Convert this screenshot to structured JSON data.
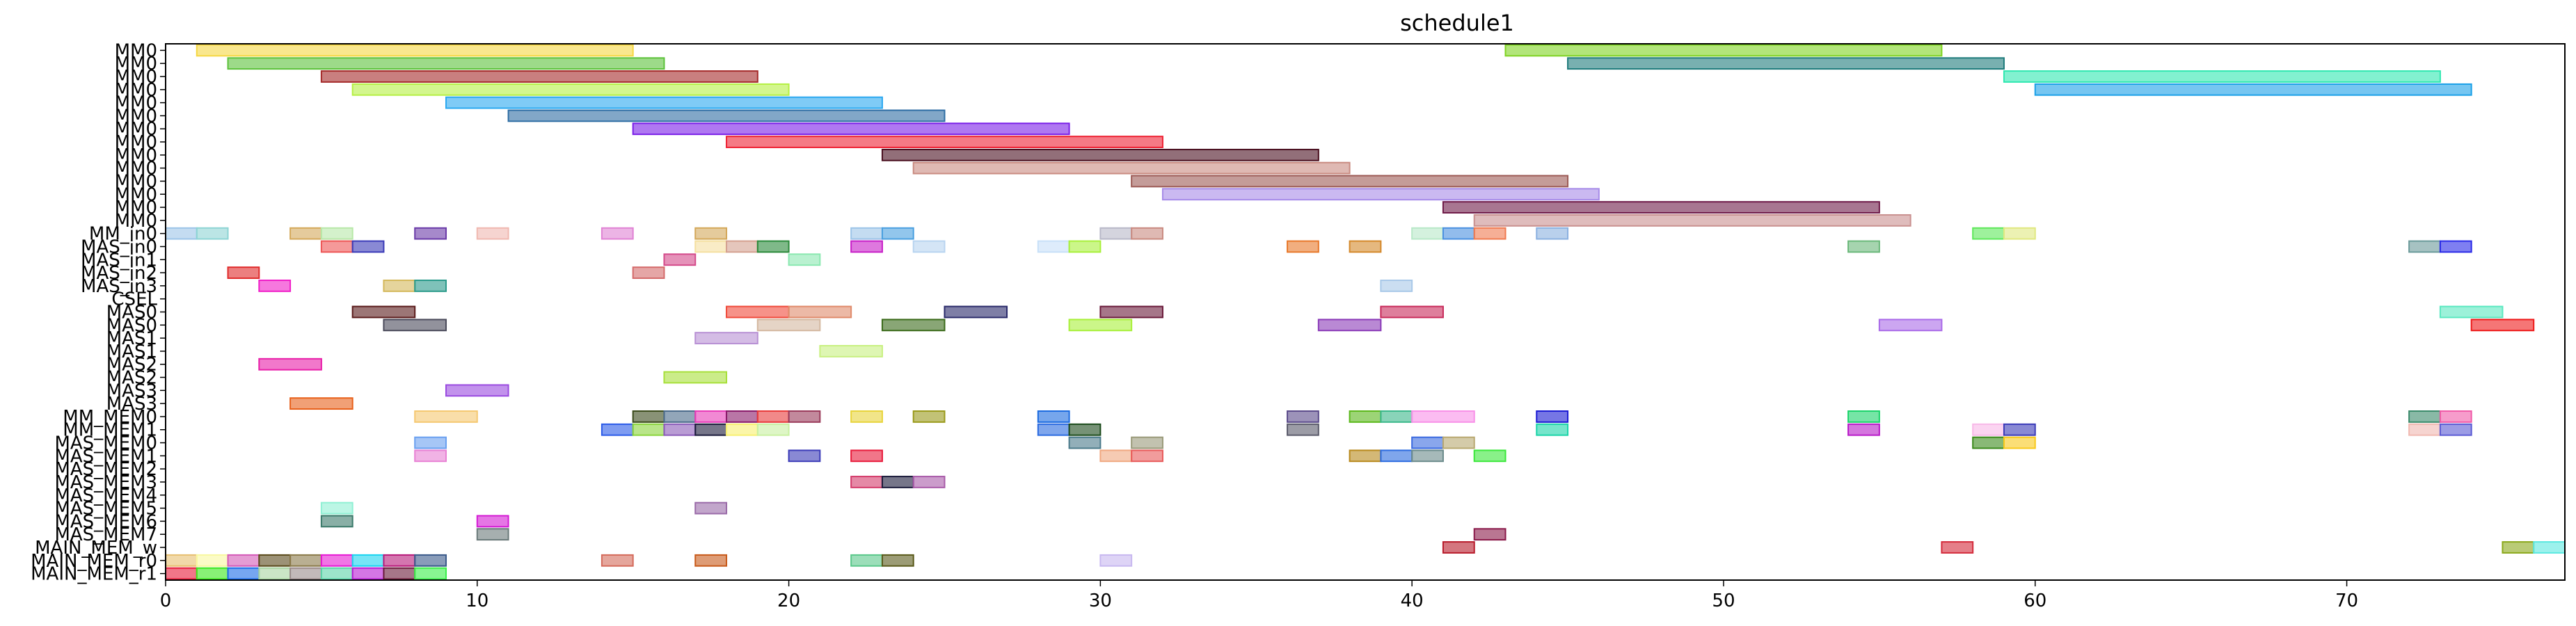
{
  "chart_data": {
    "type": "gantt",
    "title": "schedule1",
    "xlim": [
      0,
      77
    ],
    "x_ticks": [
      0,
      10,
      20,
      30,
      40,
      50,
      60,
      70
    ],
    "rows": [
      "MM0",
      "MM0",
      "MM0",
      "MM0",
      "MM0",
      "MM0",
      "MM0",
      "MM0",
      "MM0",
      "MM0",
      "MM0",
      "MM0",
      "MM0",
      "MM0",
      "MM_in0",
      "MAS_in0",
      "MAS_in1",
      "MAS_in2",
      "MAS_in3",
      "CSEL",
      "MAS0",
      "MAS0",
      "MAS1",
      "MAS1",
      "MAS2",
      "MAS2",
      "MAS3",
      "MAS3",
      "MM_MEM0",
      "MM_MEM1",
      "MAS_MEM0",
      "MAS_MEM1",
      "MAS_MEM2",
      "MAS_MEM3",
      "MAS_MEM4",
      "MAS_MEM5",
      "MAS_MEM6",
      "MAS_MEM7",
      "MAIN_MEM_w",
      "MAIN_MEM_r0",
      "MAIN_MEM_r1"
    ],
    "tasks": [
      {
        "row": 0,
        "start": 1,
        "end": 15,
        "color": "#f5d742"
      },
      {
        "row": 0,
        "start": 43,
        "end": 57,
        "color": "#7ed321"
      },
      {
        "row": 1,
        "start": 2,
        "end": 16,
        "color": "#5cc23a"
      },
      {
        "row": 1,
        "start": 45,
        "end": 59,
        "color": "#1e7b7b"
      },
      {
        "row": 2,
        "start": 5,
        "end": 19,
        "color": "#a52a2a"
      },
      {
        "row": 2,
        "start": 59,
        "end": 73,
        "color": "#2ee8b0"
      },
      {
        "row": 3,
        "start": 6,
        "end": 20,
        "color": "#b5f042"
      },
      {
        "row": 3,
        "start": 60,
        "end": 74,
        "color": "#1aa0e8"
      },
      {
        "row": 4,
        "start": 9,
        "end": 23,
        "color": "#2aa8f0"
      },
      {
        "row": 5,
        "start": 11,
        "end": 25,
        "color": "#2e6da4"
      },
      {
        "row": 6,
        "start": 15,
        "end": 29,
        "color": "#7a1ee8"
      },
      {
        "row": 7,
        "start": 18,
        "end": 32,
        "color": "#ee2233"
      },
      {
        "row": 8,
        "start": 23,
        "end": 37,
        "color": "#4a0f1f"
      },
      {
        "row": 9,
        "start": 24,
        "end": 38,
        "color": "#c98a80"
      },
      {
        "row": 10,
        "start": 31,
        "end": 45,
        "color": "#9c5a55"
      },
      {
        "row": 11,
        "start": 32,
        "end": 46,
        "color": "#a68be8"
      },
      {
        "row": 12,
        "start": 41,
        "end": 55,
        "color": "#6e1a48"
      },
      {
        "row": 13,
        "start": 42,
        "end": 56,
        "color": "#c9908f"
      },
      {
        "row": 14,
        "start": 0,
        "end": 1,
        "color": "#9cc4e8"
      },
      {
        "row": 14,
        "start": 1,
        "end": 2,
        "color": "#8dd4d4"
      },
      {
        "row": 14,
        "start": 4,
        "end": 5,
        "color": "#d4a85a"
      },
      {
        "row": 14,
        "start": 5,
        "end": 6,
        "color": "#b8e8a8"
      },
      {
        "row": 14,
        "start": 8,
        "end": 9,
        "color": "#6a3aa8"
      },
      {
        "row": 14,
        "start": 10,
        "end": 11,
        "color": "#f0b8b0"
      },
      {
        "row": 14,
        "start": 14,
        "end": 15,
        "color": "#e082d4"
      },
      {
        "row": 14,
        "start": 17,
        "end": 18,
        "color": "#d4a85a"
      },
      {
        "row": 14,
        "start": 22,
        "end": 23,
        "color": "#9cc4e8"
      },
      {
        "row": 14,
        "start": 23,
        "end": 24,
        "color": "#4aa0e0"
      },
      {
        "row": 14,
        "start": 30,
        "end": 31,
        "color": "#b8b8c8"
      },
      {
        "row": 14,
        "start": 31,
        "end": 32,
        "color": "#c98a80"
      },
      {
        "row": 14,
        "start": 40,
        "end": 41,
        "color": "#b8e8c8"
      },
      {
        "row": 14,
        "start": 41,
        "end": 42,
        "color": "#4a90e0"
      },
      {
        "row": 14,
        "start": 42,
        "end": 43,
        "color": "#f07a50"
      },
      {
        "row": 14,
        "start": 44,
        "end": 45,
        "color": "#8ab0e0"
      },
      {
        "row": 14,
        "start": 58,
        "end": 59,
        "color": "#5ee85a"
      },
      {
        "row": 14,
        "start": 59,
        "end": 60,
        "color": "#e0e880"
      },
      {
        "row": 15,
        "start": 5,
        "end": 6,
        "color": "#ee5555"
      },
      {
        "row": 15,
        "start": 6,
        "end": 7,
        "color": "#3a3ab8"
      },
      {
        "row": 15,
        "start": 17,
        "end": 18,
        "color": "#f5e0a0"
      },
      {
        "row": 15,
        "start": 18,
        "end": 19,
        "color": "#d4a090"
      },
      {
        "row": 15,
        "start": 19,
        "end": 20,
        "color": "#2a8a3a"
      },
      {
        "row": 15,
        "start": 22,
        "end": 23,
        "color": "#c81ec8"
      },
      {
        "row": 15,
        "start": 24,
        "end": 25,
        "color": "#b8d4f0"
      },
      {
        "row": 15,
        "start": 28,
        "end": 29,
        "color": "#c8e0f8"
      },
      {
        "row": 15,
        "start": 29,
        "end": 30,
        "color": "#a8f03a"
      },
      {
        "row": 15,
        "start": 36,
        "end": 37,
        "color": "#e8782a"
      },
      {
        "row": 15,
        "start": 38,
        "end": 39,
        "color": "#d4882a"
      },
      {
        "row": 15,
        "start": 54,
        "end": 55,
        "color": "#6ab87a"
      },
      {
        "row": 15,
        "start": 72,
        "end": 73,
        "color": "#6a9a9a"
      },
      {
        "row": 15,
        "start": 73,
        "end": 74,
        "color": "#2a2ae8"
      },
      {
        "row": 16,
        "start": 16,
        "end": 17,
        "color": "#d44a8a"
      },
      {
        "row": 16,
        "start": 20,
        "end": 21,
        "color": "#8ae8b0"
      },
      {
        "row": 17,
        "start": 2,
        "end": 3,
        "color": "#e02a2a"
      },
      {
        "row": 17,
        "start": 15,
        "end": 16,
        "color": "#d46a6a"
      },
      {
        "row": 18,
        "start": 3,
        "end": 4,
        "color": "#f01ec8"
      },
      {
        "row": 18,
        "start": 7,
        "end": 8,
        "color": "#d4b85a"
      },
      {
        "row": 18,
        "start": 8,
        "end": 9,
        "color": "#2a9a8a"
      },
      {
        "row": 18,
        "start": 39,
        "end": 40,
        "color": "#a8c8e8"
      },
      {
        "row": 20,
        "start": 6,
        "end": 8,
        "color": "#5a1a1a"
      },
      {
        "row": 20,
        "start": 18,
        "end": 20,
        "color": "#f04a3a"
      },
      {
        "row": 20,
        "start": 20,
        "end": 22,
        "color": "#e08a6a"
      },
      {
        "row": 20,
        "start": 25,
        "end": 27,
        "color": "#2a2a6a"
      },
      {
        "row": 20,
        "start": 30,
        "end": 32,
        "color": "#6a1a3a"
      },
      {
        "row": 20,
        "start": 39,
        "end": 41,
        "color": "#c82a5a"
      },
      {
        "row": 20,
        "start": 73,
        "end": 75,
        "color": "#5ae8c0"
      },
      {
        "row": 21,
        "start": 7,
        "end": 9,
        "color": "#4a4a5a"
      },
      {
        "row": 21,
        "start": 19,
        "end": 21,
        "color": "#d4b8a0"
      },
      {
        "row": 21,
        "start": 23,
        "end": 25,
        "color": "#3a6a1a"
      },
      {
        "row": 21,
        "start": 29,
        "end": 31,
        "color": "#a8f03a"
      },
      {
        "row": 21,
        "start": 37,
        "end": 39,
        "color": "#8a3ab8"
      },
      {
        "row": 21,
        "start": 55,
        "end": 57,
        "color": "#aa6ae8"
      },
      {
        "row": 21,
        "start": 74,
        "end": 76,
        "color": "#ee1a1a"
      },
      {
        "row": 22,
        "start": 17,
        "end": 19,
        "color": "#b890d4"
      },
      {
        "row": 23,
        "start": 21,
        "end": 23,
        "color": "#c8f080"
      },
      {
        "row": 24,
        "start": 3,
        "end": 5,
        "color": "#e81ea8"
      },
      {
        "row": 25,
        "start": 16,
        "end": 18,
        "color": "#a8e03a"
      },
      {
        "row": 26,
        "start": 9,
        "end": 11,
        "color": "#9a4ae0"
      },
      {
        "row": 27,
        "start": 4,
        "end": 6,
        "color": "#e8601a"
      },
      {
        "row": 28,
        "start": 8,
        "end": 10,
        "color": "#f5c870"
      },
      {
        "row": 28,
        "start": 15,
        "end": 16,
        "color": "#3a4a1a"
      },
      {
        "row": 28,
        "start": 16,
        "end": 17,
        "color": "#4a6a8a"
      },
      {
        "row": 28,
        "start": 17,
        "end": 18,
        "color": "#e83ab8"
      },
      {
        "row": 28,
        "start": 18,
        "end": 19,
        "color": "#8a1a6a"
      },
      {
        "row": 28,
        "start": 19,
        "end": 20,
        "color": "#e83a3a"
      },
      {
        "row": 28,
        "start": 20,
        "end": 21,
        "color": "#9a3a5a"
      },
      {
        "row": 28,
        "start": 22,
        "end": 23,
        "color": "#e8d43a"
      },
      {
        "row": 28,
        "start": 24,
        "end": 25,
        "color": "#9a9a1a"
      },
      {
        "row": 28,
        "start": 28,
        "end": 29,
        "color": "#1a6ae0"
      },
      {
        "row": 28,
        "start": 36,
        "end": 37,
        "color": "#5a4a8a"
      },
      {
        "row": 28,
        "start": 38,
        "end": 39,
        "color": "#5ab81a"
      },
      {
        "row": 28,
        "start": 39,
        "end": 40,
        "color": "#3ab88a"
      },
      {
        "row": 28,
        "start": 40,
        "end": 42,
        "color": "#f890e8"
      },
      {
        "row": 28,
        "start": 44,
        "end": 45,
        "color": "#1a1ad4"
      },
      {
        "row": 28,
        "start": 54,
        "end": 55,
        "color": "#1ad46a"
      },
      {
        "row": 28,
        "start": 72,
        "end": 73,
        "color": "#3a8a6a"
      },
      {
        "row": 28,
        "start": 73,
        "end": 74,
        "color": "#f05aa8"
      },
      {
        "row": 29,
        "start": 14,
        "end": 15,
        "color": "#2a5ae8"
      },
      {
        "row": 29,
        "start": 15,
        "end": 16,
        "color": "#8ad43a"
      },
      {
        "row": 29,
        "start": 16,
        "end": 17,
        "color": "#8a5ab8"
      },
      {
        "row": 29,
        "start": 17,
        "end": 18,
        "color": "#1a1a3a"
      },
      {
        "row": 29,
        "start": 18,
        "end": 19,
        "color": "#f8f070"
      },
      {
        "row": 29,
        "start": 19,
        "end": 20,
        "color": "#c8f0a0"
      },
      {
        "row": 29,
        "start": 28,
        "end": 29,
        "color": "#2a6ae0"
      },
      {
        "row": 29,
        "start": 29,
        "end": 30,
        "color": "#1a4a1a"
      },
      {
        "row": 29,
        "start": 36,
        "end": 37,
        "color": "#5a5a6a"
      },
      {
        "row": 29,
        "start": 44,
        "end": 45,
        "color": "#1ad4a8"
      },
      {
        "row": 29,
        "start": 54,
        "end": 55,
        "color": "#b81ac8"
      },
      {
        "row": 29,
        "start": 58,
        "end": 59,
        "color": "#f8b8e8"
      },
      {
        "row": 29,
        "start": 59,
        "end": 60,
        "color": "#3a3ab8"
      },
      {
        "row": 29,
        "start": 72,
        "end": 73,
        "color": "#f0b8b0"
      },
      {
        "row": 29,
        "start": 73,
        "end": 74,
        "color": "#5a5ad4"
      },
      {
        "row": 30,
        "start": 8,
        "end": 9,
        "color": "#6aa0f0"
      },
      {
        "row": 30,
        "start": 29,
        "end": 30,
        "color": "#4a7a8a"
      },
      {
        "row": 30,
        "start": 31,
        "end": 32,
        "color": "#9a9a7a"
      },
      {
        "row": 30,
        "start": 40,
        "end": 41,
        "color": "#3a6ae0"
      },
      {
        "row": 30,
        "start": 41,
        "end": 42,
        "color": "#b8a870"
      },
      {
        "row": 30,
        "start": 58,
        "end": 59,
        "color": "#3a8a1a"
      },
      {
        "row": 30,
        "start": 59,
        "end": 60,
        "color": "#f8c81a"
      },
      {
        "row": 31,
        "start": 8,
        "end": 9,
        "color": "#e880d4"
      },
      {
        "row": 31,
        "start": 20,
        "end": 21,
        "color": "#3a3ab8"
      },
      {
        "row": 31,
        "start": 22,
        "end": 23,
        "color": "#e81a3a"
      },
      {
        "row": 31,
        "start": 30,
        "end": 31,
        "color": "#f0a880"
      },
      {
        "row": 31,
        "start": 31,
        "end": 32,
        "color": "#e85a5a"
      },
      {
        "row": 31,
        "start": 38,
        "end": 39,
        "color": "#b8881a"
      },
      {
        "row": 31,
        "start": 39,
        "end": 40,
        "color": "#2a6ae0"
      },
      {
        "row": 31,
        "start": 40,
        "end": 41,
        "color": "#6a8a8a"
      },
      {
        "row": 31,
        "start": 42,
        "end": 43,
        "color": "#3ae83a"
      },
      {
        "row": 33,
        "start": 22,
        "end": 23,
        "color": "#d43a6a"
      },
      {
        "row": 33,
        "start": 23,
        "end": 24,
        "color": "#1a1a3a"
      },
      {
        "row": 33,
        "start": 24,
        "end": 25,
        "color": "#a85aa8"
      },
      {
        "row": 35,
        "start": 5,
        "end": 6,
        "color": "#90f0d4"
      },
      {
        "row": 35,
        "start": 17,
        "end": 18,
        "color": "#9a6aa8"
      },
      {
        "row": 36,
        "start": 5,
        "end": 6,
        "color": "#3a7a6a"
      },
      {
        "row": 36,
        "start": 10,
        "end": 11,
        "color": "#d41ad4"
      },
      {
        "row": 37,
        "start": 10,
        "end": 11,
        "color": "#6a7a7a"
      },
      {
        "row": 37,
        "start": 42,
        "end": 43,
        "color": "#8a1a4a"
      },
      {
        "row": 38,
        "start": 41,
        "end": 42,
        "color": "#b81a2a"
      },
      {
        "row": 38,
        "start": 57,
        "end": 58,
        "color": "#d42a3a"
      },
      {
        "row": 38,
        "start": 75,
        "end": 76,
        "color": "#8aa81a"
      },
      {
        "row": 38,
        "start": 76,
        "end": 77,
        "color": "#5ae8e0"
      },
      {
        "row": 39,
        "start": 0,
        "end": 1,
        "color": "#e8c070"
      },
      {
        "row": 39,
        "start": 1,
        "end": 2,
        "color": "#f8f8a0"
      },
      {
        "row": 39,
        "start": 2,
        "end": 3,
        "color": "#d45ab8"
      },
      {
        "row": 39,
        "start": 3,
        "end": 4,
        "color": "#5a4a1a"
      },
      {
        "row": 39,
        "start": 4,
        "end": 5,
        "color": "#8a7a4a"
      },
      {
        "row": 39,
        "start": 5,
        "end": 6,
        "color": "#e81ad4"
      },
      {
        "row": 39,
        "start": 6,
        "end": 7,
        "color": "#1ad4f0"
      },
      {
        "row": 39,
        "start": 7,
        "end": 8,
        "color": "#b81a7a"
      },
      {
        "row": 39,
        "start": 8,
        "end": 9,
        "color": "#3a5a8a"
      },
      {
        "row": 39,
        "start": 14,
        "end": 15,
        "color": "#d46a5a"
      },
      {
        "row": 39,
        "start": 17,
        "end": 18,
        "color": "#c85a1a"
      },
      {
        "row": 39,
        "start": 22,
        "end": 23,
        "color": "#5ac88a"
      },
      {
        "row": 39,
        "start": 23,
        "end": 24,
        "color": "#5a5a1a"
      },
      {
        "row": 39,
        "start": 30,
        "end": 31,
        "color": "#c8b8f0"
      },
      {
        "row": 40,
        "start": 0,
        "end": 1,
        "color": "#e81a3a"
      },
      {
        "row": 40,
        "start": 1,
        "end": 2,
        "color": "#3ae81a"
      },
      {
        "row": 40,
        "start": 2,
        "end": 3,
        "color": "#1a6ae8"
      },
      {
        "row": 40,
        "start": 3,
        "end": 4,
        "color": "#a8d4a0"
      },
      {
        "row": 40,
        "start": 4,
        "end": 5,
        "color": "#9a8a8a"
      },
      {
        "row": 40,
        "start": 5,
        "end": 6,
        "color": "#5ad4a8"
      },
      {
        "row": 40,
        "start": 6,
        "end": 7,
        "color": "#b81ad4"
      },
      {
        "row": 40,
        "start": 7,
        "end": 8,
        "color": "#6a1a3a"
      },
      {
        "row": 40,
        "start": 8,
        "end": 9,
        "color": "#3af04a"
      }
    ]
  }
}
